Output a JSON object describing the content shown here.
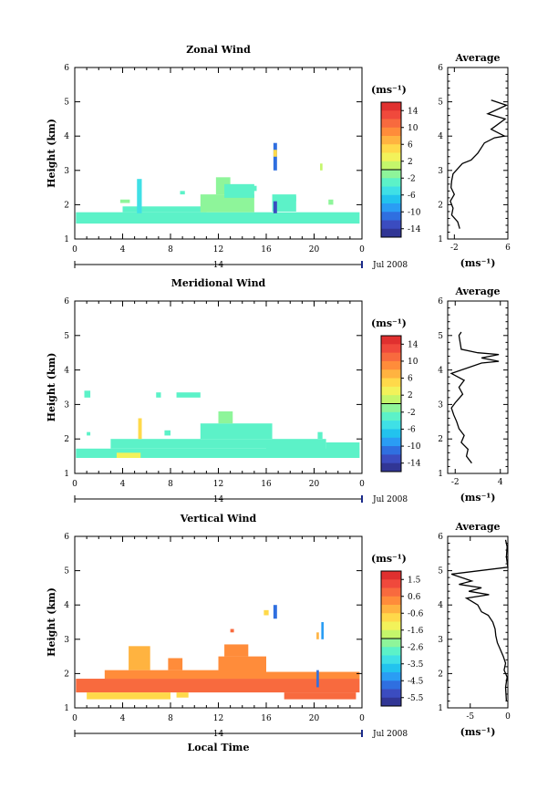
{
  "chart_data": [
    {
      "type": "heatmap",
      "title": "Zonal Wind",
      "ylabel": "Height (km)",
      "xticks": [
        "0",
        "4",
        "8",
        "12",
        "16",
        "20",
        "0"
      ],
      "yticks": [
        "1",
        "2",
        "3",
        "4",
        "5",
        "6"
      ],
      "xlim": [
        0,
        24
      ],
      "ylim": [
        1,
        6
      ],
      "day_label": "14",
      "date_label": "Jul 2008",
      "colorbar": {
        "unit": "(ms⁻¹)",
        "ticks": [
          "14",
          "10",
          "6",
          "2",
          "-2",
          "-6",
          "-10",
          "-14"
        ],
        "range": [
          -16,
          16
        ]
      },
      "profile": {
        "title": "Average",
        "xticks": [
          "-2",
          "6"
        ],
        "xlim": [
          -3,
          6
        ],
        "yticks": [
          "1",
          "2",
          "3",
          "4",
          "5",
          "6"
        ],
        "ylim": [
          1,
          6
        ],
        "xlabel": "(ms⁻¹)",
        "points": [
          [
            -1.2,
            1.3
          ],
          [
            -1.5,
            1.5
          ],
          [
            -2.4,
            1.7
          ],
          [
            -2.2,
            1.9
          ],
          [
            -2.6,
            2.1
          ],
          [
            -2.0,
            2.3
          ],
          [
            -2.5,
            2.5
          ],
          [
            -2.4,
            2.7
          ],
          [
            -2.2,
            2.9
          ],
          [
            -1.5,
            3.05
          ],
          [
            -0.8,
            3.2
          ],
          [
            0.5,
            3.3
          ],
          [
            1.5,
            3.5
          ],
          [
            2.5,
            3.8
          ],
          [
            4.0,
            3.95
          ],
          [
            5.5,
            4.0
          ],
          [
            3.5,
            4.2
          ],
          [
            5.6,
            4.5
          ],
          [
            3.0,
            4.65
          ],
          [
            5.8,
            4.9
          ],
          [
            3.5,
            5.05
          ]
        ]
      },
      "blocks": [
        {
          "x0": 0.1,
          "x1": 23.8,
          "y0": 1.45,
          "y1": 1.78,
          "v": -3
        },
        {
          "x0": 4.0,
          "x1": 11.0,
          "y0": 1.78,
          "y1": 1.95,
          "v": -3
        },
        {
          "x0": 10.5,
          "x1": 15.0,
          "y0": 1.78,
          "y1": 2.3,
          "v": -2
        },
        {
          "x0": 11.8,
          "x1": 13.0,
          "y0": 2.3,
          "y1": 2.8,
          "v": -1
        },
        {
          "x0": 12.5,
          "x1": 15.0,
          "y0": 2.2,
          "y1": 2.6,
          "v": -3
        },
        {
          "x0": 16.5,
          "x1": 18.5,
          "y0": 1.8,
          "y1": 2.3,
          "v": -4
        },
        {
          "x0": 5.2,
          "x1": 5.6,
          "y0": 1.75,
          "y1": 2.75,
          "v": -5
        },
        {
          "x0": 16.6,
          "x1": 16.9,
          "y0": 1.75,
          "y1": 2.1,
          "v": -13
        },
        {
          "x0": 16.6,
          "x1": 16.9,
          "y0": 3.0,
          "y1": 3.8,
          "v": -12
        },
        {
          "x0": 16.6,
          "x1": 16.9,
          "y0": 3.4,
          "y1": 3.6,
          "v": 4
        },
        {
          "x0": 20.5,
          "x1": 20.7,
          "y0": 3.0,
          "y1": 3.2,
          "v": 1
        },
        {
          "x0": 3.8,
          "x1": 4.6,
          "y0": 2.05,
          "y1": 2.15,
          "v": -2
        },
        {
          "x0": 8.8,
          "x1": 9.2,
          "y0": 2.3,
          "y1": 2.4,
          "v": -3
        },
        {
          "x0": 14.8,
          "x1": 15.2,
          "y0": 2.4,
          "y1": 2.55,
          "v": -3
        },
        {
          "x0": 18.2,
          "x1": 18.5,
          "y0": 2.1,
          "y1": 2.25,
          "v": -3
        },
        {
          "x0": 21.2,
          "x1": 21.6,
          "y0": 2.0,
          "y1": 2.15,
          "v": -2
        }
      ]
    },
    {
      "type": "heatmap",
      "title": "Meridional Wind",
      "ylabel": "Height (km)",
      "xticks": [
        "0",
        "4",
        "8",
        "12",
        "16",
        "20",
        "0"
      ],
      "yticks": [
        "1",
        "2",
        "3",
        "4",
        "5",
        "6"
      ],
      "xlim": [
        0,
        24
      ],
      "ylim": [
        1,
        6
      ],
      "day_label": "14",
      "date_label": "Jul 2008",
      "colorbar": {
        "unit": "(ms⁻¹)",
        "ticks": [
          "14",
          "10",
          "6",
          "2",
          "-2",
          "-6",
          "-10",
          "-14"
        ],
        "range": [
          -16,
          16
        ]
      },
      "profile": {
        "title": "Average",
        "xticks": [
          "-2",
          "4"
        ],
        "xlim": [
          -3,
          5
        ],
        "yticks": [
          "1",
          "2",
          "3",
          "4",
          "5",
          "6"
        ],
        "ylim": [
          1,
          6
        ],
        "xlabel": "(ms⁻¹)",
        "points": [
          [
            0.2,
            1.3
          ],
          [
            -0.5,
            1.5
          ],
          [
            -0.3,
            1.7
          ],
          [
            -1.2,
            1.9
          ],
          [
            -0.8,
            2.1
          ],
          [
            -1.5,
            2.3
          ],
          [
            -1.8,
            2.5
          ],
          [
            -2.2,
            2.7
          ],
          [
            -2.5,
            2.9
          ],
          [
            -2.0,
            3.05
          ],
          [
            -1.0,
            3.3
          ],
          [
            -1.5,
            3.5
          ],
          [
            -0.8,
            3.7
          ],
          [
            -2.5,
            3.9
          ],
          [
            1.5,
            4.2
          ],
          [
            3.8,
            4.25
          ],
          [
            1.5,
            4.35
          ],
          [
            3.8,
            4.45
          ],
          [
            1.0,
            4.5
          ],
          [
            -1.2,
            4.6
          ],
          [
            -1.5,
            5.0
          ],
          [
            -1.2,
            5.1
          ]
        ]
      },
      "blocks": [
        {
          "x0": 0.1,
          "x1": 23.8,
          "y0": 1.45,
          "y1": 1.72,
          "v": -3
        },
        {
          "x0": 3.0,
          "x1": 16.0,
          "y0": 1.72,
          "y1": 2.0,
          "v": -3
        },
        {
          "x0": 10.5,
          "x1": 16.5,
          "y0": 2.0,
          "y1": 2.45,
          "v": -3
        },
        {
          "x0": 12.0,
          "x1": 13.2,
          "y0": 2.45,
          "y1": 2.8,
          "v": -2
        },
        {
          "x0": 16.0,
          "x1": 21.0,
          "y0": 1.7,
          "y1": 2.0,
          "v": -4
        },
        {
          "x0": 21.0,
          "x1": 23.8,
          "y0": 1.7,
          "y1": 1.9,
          "v": -3
        },
        {
          "x0": 3.5,
          "x1": 5.5,
          "y0": 1.45,
          "y1": 1.6,
          "v": 2
        },
        {
          "x0": 5.3,
          "x1": 5.6,
          "y0": 2.0,
          "y1": 2.6,
          "v": 5
        },
        {
          "x0": 0.8,
          "x1": 1.3,
          "y0": 3.2,
          "y1": 3.4,
          "v": -3
        },
        {
          "x0": 6.8,
          "x1": 7.2,
          "y0": 3.2,
          "y1": 3.35,
          "v": -3
        },
        {
          "x0": 8.5,
          "x1": 10.5,
          "y0": 3.2,
          "y1": 3.35,
          "v": -3
        },
        {
          "x0": 1.0,
          "x1": 1.3,
          "y0": 2.1,
          "y1": 2.2,
          "v": -4
        },
        {
          "x0": 7.5,
          "x1": 8.0,
          "y0": 2.1,
          "y1": 2.25,
          "v": -4
        },
        {
          "x0": 20.3,
          "x1": 20.7,
          "y0": 2.0,
          "y1": 2.2,
          "v": -4
        }
      ]
    },
    {
      "type": "heatmap",
      "title": "Vertical Wind",
      "ylabel": "Height (km)",
      "xlabel": "Local Time",
      "xticks": [
        "0",
        "4",
        "8",
        "12",
        "16",
        "20",
        "0"
      ],
      "yticks": [
        "1",
        "2",
        "3",
        "4",
        "5",
        "6"
      ],
      "xlim": [
        0,
        24
      ],
      "ylim": [
        1,
        6
      ],
      "day_label": "14",
      "date_label": "Jul 2008",
      "colorbar": {
        "unit": "(ms⁻¹)",
        "ticks": [
          "1.5",
          "0.6",
          "-0.6",
          "-1.6",
          "-2.6",
          "-3.5",
          "-4.5",
          "-5.5"
        ],
        "range": [
          -6.0,
          2.0
        ]
      },
      "profile": {
        "title": "Average",
        "xticks": [
          "-5",
          "0"
        ],
        "xlim": [
          -8,
          0
        ],
        "yticks": [
          "1",
          "2",
          "3",
          "4",
          "5",
          "6"
        ],
        "ylim": [
          1,
          6
        ],
        "xlabel": "(ms⁻¹)",
        "points": [
          [
            -0.2,
            1.2
          ],
          [
            -0.3,
            1.6
          ],
          [
            -0.1,
            1.9
          ],
          [
            -0.5,
            2.1
          ],
          [
            -0.3,
            2.3
          ],
          [
            -0.6,
            2.5
          ],
          [
            -1.0,
            2.7
          ],
          [
            -1.4,
            2.9
          ],
          [
            -1.6,
            3.1
          ],
          [
            -1.7,
            3.3
          ],
          [
            -2.0,
            3.5
          ],
          [
            -2.6,
            3.7
          ],
          [
            -3.5,
            3.8
          ],
          [
            -4.0,
            4.0
          ],
          [
            -5.5,
            4.2
          ],
          [
            -2.5,
            4.3
          ],
          [
            -5.2,
            4.4
          ],
          [
            -3.5,
            4.5
          ],
          [
            -6.5,
            4.6
          ],
          [
            -4.8,
            4.7
          ],
          [
            -7.5,
            4.9
          ],
          [
            0,
            5.1
          ],
          [
            -0.2,
            5.4
          ],
          [
            -0.1,
            5.7
          ],
          [
            -0.3,
            5.9
          ]
        ]
      },
      "blocks": [
        {
          "x0": 0.1,
          "x1": 23.8,
          "y0": 1.45,
          "y1": 1.85,
          "v": 0.6
        },
        {
          "x0": 2.5,
          "x1": 13.0,
          "y0": 1.85,
          "y1": 2.1,
          "v": 0.3
        },
        {
          "x0": 4.5,
          "x1": 6.3,
          "y0": 2.1,
          "y1": 2.8,
          "v": -0.4
        },
        {
          "x0": 7.8,
          "x1": 9.0,
          "y0": 2.1,
          "y1": 2.45,
          "v": 0.2
        },
        {
          "x0": 12.0,
          "x1": 16.0,
          "y0": 1.85,
          "y1": 2.5,
          "v": 0.4
        },
        {
          "x0": 12.5,
          "x1": 14.5,
          "y0": 2.5,
          "y1": 2.85,
          "v": 0.3
        },
        {
          "x0": 16.0,
          "x1": 23.8,
          "y0": 1.85,
          "y1": 2.05,
          "v": 0.3
        },
        {
          "x0": 1.0,
          "x1": 8.0,
          "y0": 1.25,
          "y1": 1.45,
          "v": -0.9
        },
        {
          "x0": 8.5,
          "x1": 9.5,
          "y0": 1.3,
          "y1": 1.45,
          "v": -0.6
        },
        {
          "x0": 17.5,
          "x1": 23.5,
          "y0": 1.25,
          "y1": 1.45,
          "v": 0.8
        },
        {
          "x0": 16.6,
          "x1": 16.9,
          "y0": 3.6,
          "y1": 4.0,
          "v": -4.8
        },
        {
          "x0": 15.8,
          "x1": 16.2,
          "y0": 3.7,
          "y1": 3.85,
          "v": -0.8
        },
        {
          "x0": 20.6,
          "x1": 20.8,
          "y0": 3.0,
          "y1": 3.5,
          "v": -4.5
        },
        {
          "x0": 20.2,
          "x1": 20.4,
          "y0": 3.0,
          "y1": 3.2,
          "v": -0.5
        },
        {
          "x0": 20.2,
          "x1": 20.4,
          "y0": 1.6,
          "y1": 2.1,
          "v": -4.8
        },
        {
          "x0": 13.0,
          "x1": 13.3,
          "y0": 3.2,
          "y1": 3.3,
          "v": 0.5
        }
      ]
    }
  ]
}
